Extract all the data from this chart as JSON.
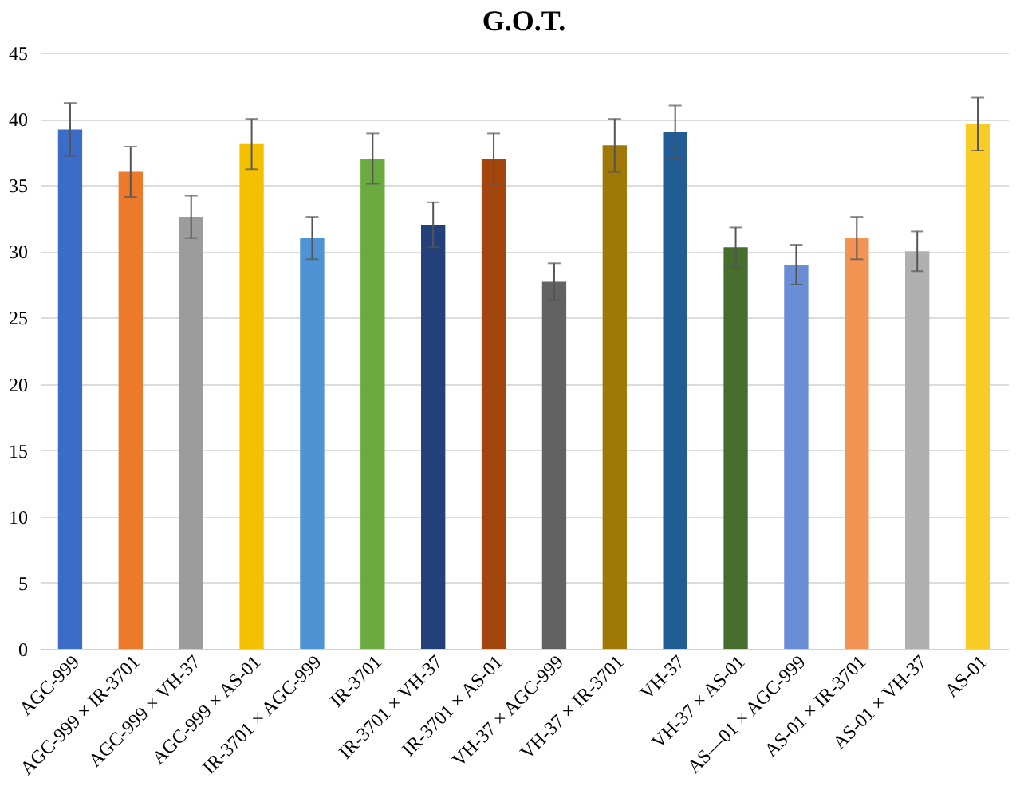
{
  "chart_data": {
    "type": "bar",
    "title": "G.O.T.",
    "categories": [
      "AGC-999",
      "AGC-999 × IR-3701",
      "AGC-999 × VH-37",
      "AGC-999 × AS-01",
      "IR-3701 × AGC-999",
      "IR-3701",
      "IR-3701 × VH-37",
      "IR-3701 × AS-01",
      "VH-37 × AGC-999",
      "VH-37 × IR-3701",
      "VH-37",
      "VH-37 × AS-01",
      "AS—01 × AGC-999",
      "AS-01 × IR-3701",
      "AS-01 × VH-37",
      "AS-01"
    ],
    "values": [
      39.2,
      36,
      32.6,
      38.1,
      31,
      37,
      32,
      37,
      27.7,
      38,
      39,
      30.3,
      29,
      31,
      30,
      39.6
    ],
    "errors": [
      2,
      1.9,
      1.6,
      1.9,
      1.6,
      1.9,
      1.7,
      1.9,
      1.4,
      2,
      2,
      1.5,
      1.5,
      1.6,
      1.5,
      2
    ],
    "colors": [
      "#3a6cc8",
      "#ec7a2a",
      "#9c9c9c",
      "#f5c000",
      "#4e94d4",
      "#6aaa3e",
      "#23407a",
      "#a2460e",
      "#626262",
      "#a07808",
      "#215c94",
      "#466e2c",
      "#6a8ed6",
      "#f29454",
      "#b0b0b0",
      "#f8cc24"
    ],
    "ylim": [
      0,
      45
    ],
    "yticks": [
      0,
      5,
      10,
      15,
      20,
      25,
      30,
      35,
      40,
      45
    ],
    "grid": "y",
    "legend": false
  }
}
